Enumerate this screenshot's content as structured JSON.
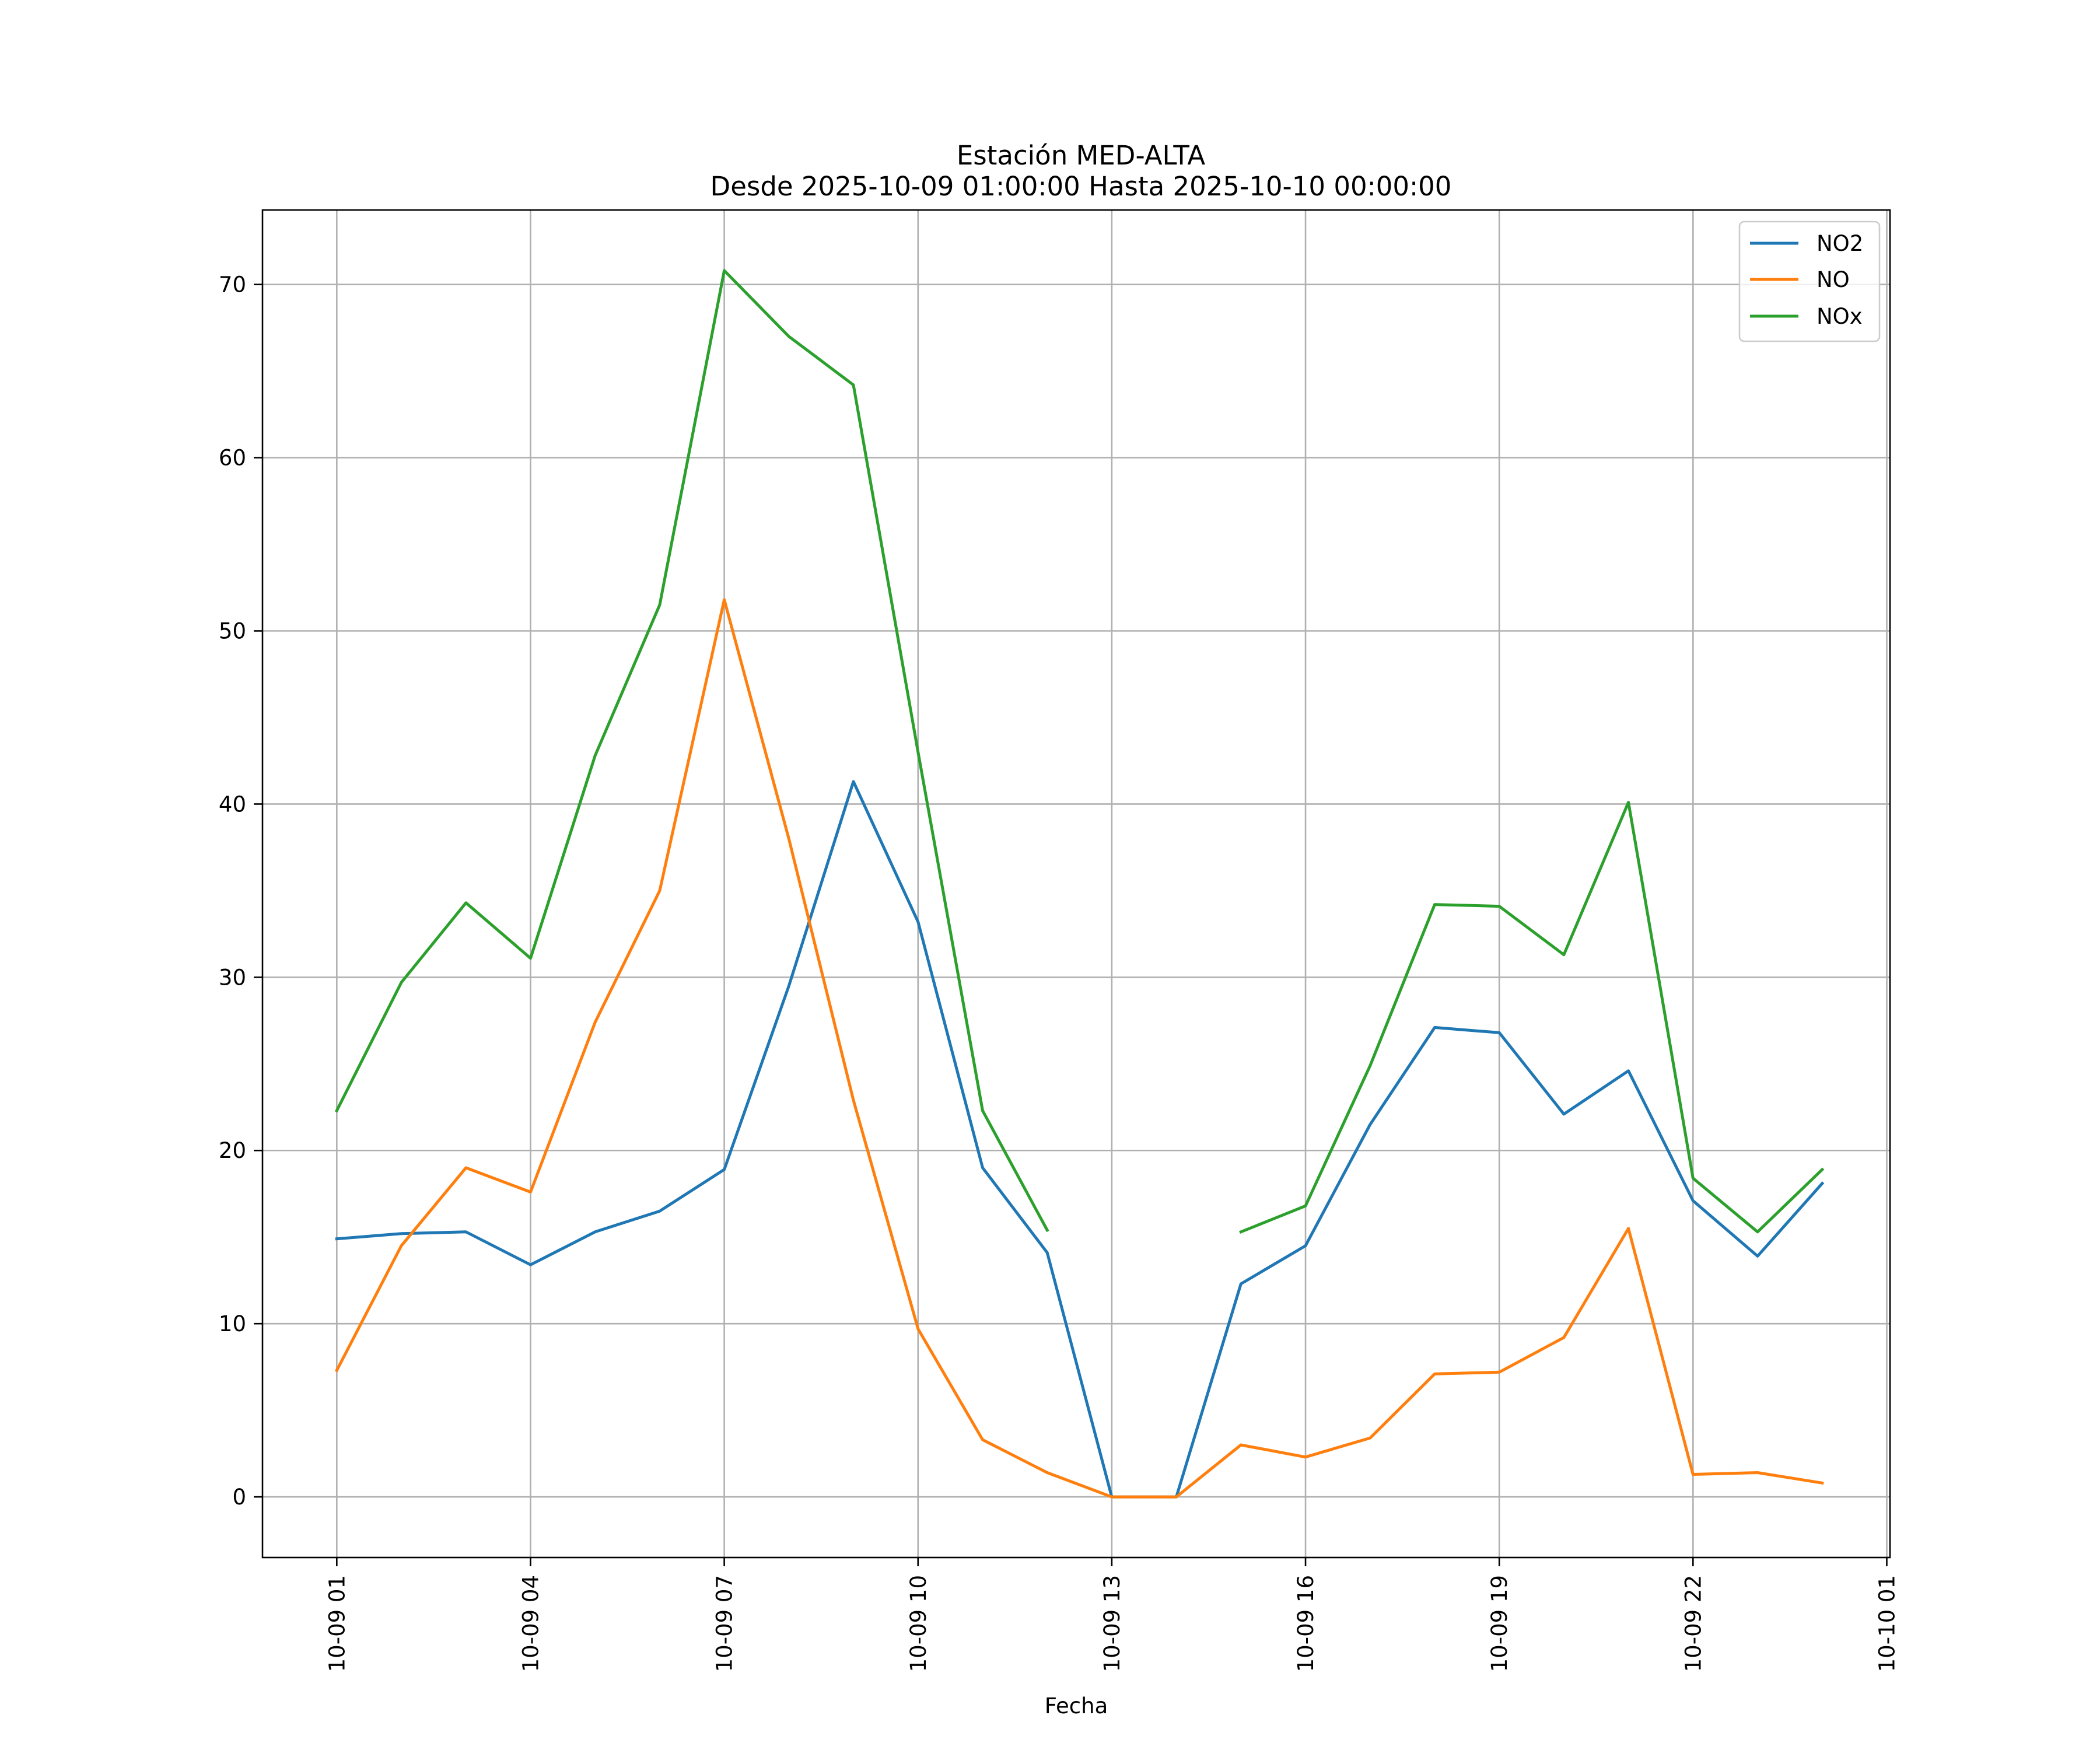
{
  "chart_data": {
    "type": "line",
    "title": "Estación MED-ALTA",
    "subtitle": "Desde 2025-10-09 01:00:00 Hasta 2025-10-10 00:00:00",
    "xlabel": "Fecha",
    "ylabel": "",
    "x_hours": [
      1,
      2,
      3,
      4,
      5,
      6,
      7,
      8,
      9,
      10,
      11,
      12,
      13,
      14,
      15,
      16,
      17,
      18,
      19,
      20,
      21,
      22,
      23,
      24
    ],
    "xlim": [
      -0.15,
      25.05
    ],
    "ylim": [
      -3.5,
      74.3
    ],
    "x_ticks": [
      {
        "value": 1,
        "label": "10-09 01"
      },
      {
        "value": 4,
        "label": "10-09 04"
      },
      {
        "value": 7,
        "label": "10-09 07"
      },
      {
        "value": 10,
        "label": "10-09 10"
      },
      {
        "value": 13,
        "label": "10-09 13"
      },
      {
        "value": 16,
        "label": "10-09 16"
      },
      {
        "value": 19,
        "label": "10-09 19"
      },
      {
        "value": 22,
        "label": "10-09 22"
      },
      {
        "value": 25,
        "label": "10-10 01"
      }
    ],
    "y_ticks": [
      {
        "value": 0,
        "label": "0"
      },
      {
        "value": 10,
        "label": "10"
      },
      {
        "value": 20,
        "label": "20"
      },
      {
        "value": 30,
        "label": "30"
      },
      {
        "value": 40,
        "label": "40"
      },
      {
        "value": 50,
        "label": "50"
      },
      {
        "value": 60,
        "label": "60"
      },
      {
        "value": 70,
        "label": "70"
      }
    ],
    "grid": true,
    "legend_position": "top-right",
    "series": [
      {
        "name": "NO2",
        "color": "#1f77b4",
        "values": [
          14.9,
          15.2,
          15.3,
          13.4,
          15.3,
          16.5,
          18.9,
          29.5,
          41.3,
          33.2,
          19.0,
          14.1,
          0.0,
          0.0,
          12.3,
          14.5,
          21.5,
          27.1,
          26.8,
          22.1,
          24.6,
          17.1,
          13.9,
          18.1
        ]
      },
      {
        "name": "NO",
        "color": "#ff7f0e",
        "values": [
          7.3,
          14.5,
          19.0,
          17.6,
          27.4,
          35.0,
          51.8,
          38.0,
          22.9,
          9.7,
          3.3,
          1.4,
          0.0,
          0.0,
          3.0,
          2.3,
          3.4,
          7.1,
          7.2,
          9.2,
          15.5,
          1.3,
          1.4,
          0.8
        ]
      },
      {
        "name": "NOx",
        "color": "#2ca02c",
        "values": [
          22.3,
          29.7,
          34.3,
          31.1,
          42.8,
          51.5,
          70.8,
          67.0,
          64.2,
          43.0,
          22.3,
          15.4,
          null,
          null,
          15.3,
          16.8,
          24.9,
          34.2,
          34.1,
          31.3,
          40.1,
          18.4,
          15.3,
          18.9
        ]
      }
    ]
  }
}
